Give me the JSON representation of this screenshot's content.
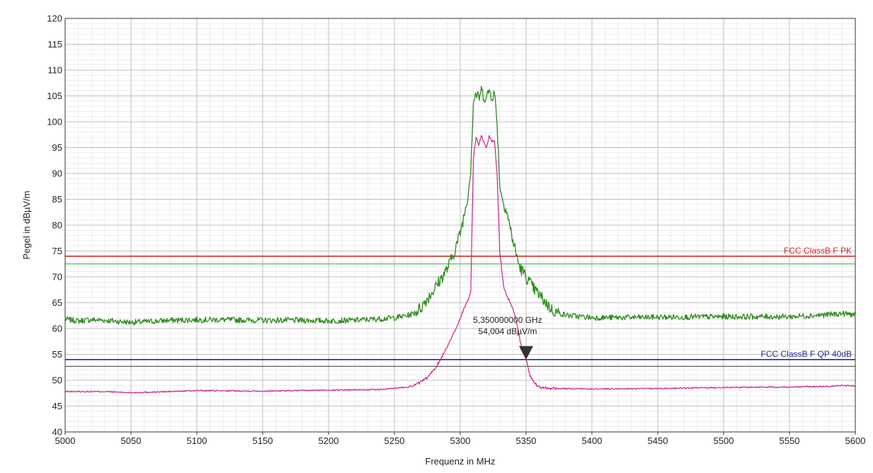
{
  "chart_data": {
    "type": "line",
    "xlabel": "Frequenz in MHz",
    "ylabel": "Pegel in dBµV/m",
    "xlim": [
      5000,
      5600
    ],
    "ylim": [
      40,
      120
    ],
    "x_ticks": [
      5000,
      5050,
      5100,
      5150,
      5200,
      5250,
      5300,
      5350,
      5400,
      5450,
      5500,
      5550,
      5600
    ],
    "y_ticks": [
      40,
      45,
      50,
      55,
      60,
      65,
      70,
      75,
      80,
      85,
      90,
      95,
      100,
      105,
      110,
      115,
      120
    ],
    "grid": true,
    "colors": {
      "peak_trace": "#2f8a1e",
      "average_trace": "#d0208a",
      "limit_pk": "#d02828",
      "limit_pk_offset": "#3aa03a",
      "limit_qp": "#1f2f8f",
      "limit_qp_offset": "#222222",
      "grid": "#bfbfbf"
    },
    "series": [
      {
        "key": "peak",
        "x": [
          5000,
          5010,
          5020,
          5030,
          5040,
          5050,
          5060,
          5080,
          5100,
          5120,
          5150,
          5180,
          5200,
          5220,
          5240,
          5250,
          5260,
          5265,
          5270,
          5275,
          5280,
          5285,
          5290,
          5295,
          5300,
          5303,
          5306,
          5308,
          5310,
          5312,
          5314,
          5316,
          5318,
          5320,
          5322,
          5324,
          5326,
          5328,
          5330,
          5332,
          5335,
          5340,
          5345,
          5350,
          5355,
          5360,
          5365,
          5370,
          5375,
          5380,
          5400,
          5450,
          5500,
          5550,
          5580,
          5590,
          5600
        ],
        "y": [
          61.8,
          61.5,
          61.7,
          61.6,
          61.4,
          61.2,
          61.3,
          61.6,
          61.7,
          61.7,
          61.6,
          61.6,
          61.5,
          61.6,
          61.9,
          62.1,
          62.5,
          63.0,
          64.0,
          65.8,
          67.5,
          69.5,
          71.5,
          74.5,
          78.5,
          82.0,
          86.0,
          91.0,
          104.0,
          105.5,
          104.5,
          106.0,
          105.0,
          104.5,
          106.2,
          105.0,
          105.5,
          100.0,
          88.0,
          85.0,
          83.0,
          77.0,
          72.0,
          70.0,
          68.0,
          66.5,
          65.0,
          63.5,
          63.0,
          62.6,
          62.1,
          62.2,
          62.3,
          62.3,
          62.7,
          62.9,
          62.7
        ]
      },
      {
        "key": "average",
        "x": [
          5000,
          5030,
          5050,
          5080,
          5100,
          5150,
          5200,
          5240,
          5260,
          5265,
          5270,
          5275,
          5280,
          5285,
          5290,
          5295,
          5300,
          5303,
          5306,
          5308,
          5310,
          5312,
          5314,
          5316,
          5318,
          5320,
          5322,
          5324,
          5326,
          5328,
          5330,
          5333,
          5336,
          5340,
          5343,
          5346,
          5350,
          5353,
          5356,
          5360,
          5370,
          5400,
          5450,
          5500,
          5550,
          5580,
          5590,
          5600
        ],
        "y": [
          47.8,
          47.8,
          47.6,
          47.8,
          48.0,
          47.9,
          48.1,
          48.2,
          48.7,
          49.0,
          49.6,
          50.5,
          52.0,
          54.0,
          56.5,
          59.0,
          62.0,
          64.0,
          65.5,
          67.0,
          93.0,
          97.0,
          95.5,
          97.5,
          96.0,
          95.0,
          97.2,
          96.0,
          96.5,
          90.0,
          75.0,
          68.0,
          66.0,
          64.0,
          61.0,
          57.0,
          54.0,
          51.0,
          49.5,
          48.6,
          48.4,
          48.3,
          48.4,
          48.6,
          48.7,
          48.8,
          49.0,
          48.9
        ]
      }
    ],
    "limit_lines": [
      {
        "key": "pk",
        "label": "FCC ClassB F PK",
        "y": 74
      },
      {
        "key": "pk_offset",
        "y": 72.5
      },
      {
        "key": "qp",
        "label": "FCC ClassB F QP 40dB",
        "y": 54
      },
      {
        "key": "qp_offset",
        "y": 52.7
      }
    ],
    "marker": {
      "x": 5350,
      "y": 54.004,
      "label_line1": "5,350000000 GHz",
      "label_line2": "54,004 dBµV/m"
    }
  }
}
